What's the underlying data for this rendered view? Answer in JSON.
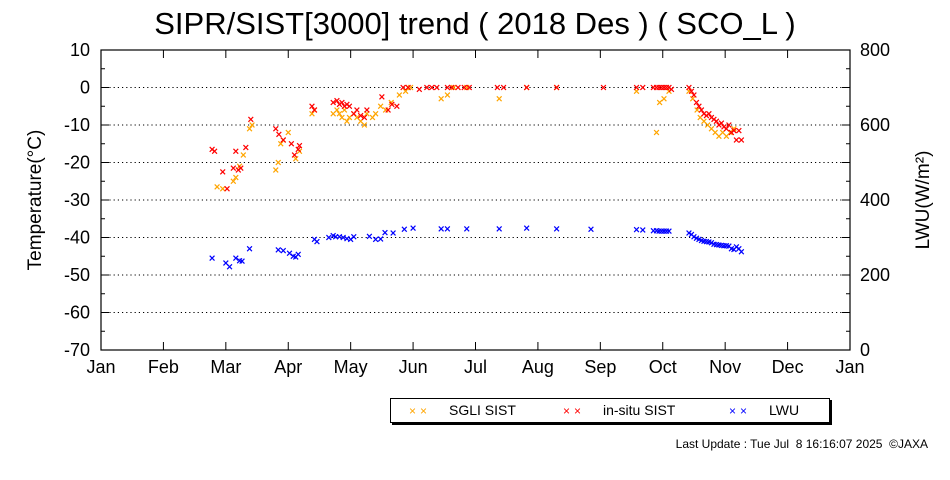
{
  "chart_data": {
    "type": "scatter",
    "title": "SIPR/SIST[3000] trend ( 2018 Des ) ( SCO_L )",
    "ylabel": "Temperature(°C)",
    "ylabel_right": "LWU(W/m²)",
    "ylim": [
      -70,
      10
    ],
    "ylim_right": [
      0,
      800
    ],
    "yticks": [
      10,
      0,
      -10,
      -20,
      -30,
      -40,
      -50,
      -60,
      -70
    ],
    "yticks_right": [
      800,
      600,
      400,
      200,
      0
    ],
    "xticks": [
      "Jan",
      "Feb",
      "Mar",
      "Apr",
      "May",
      "Jun",
      "Jul",
      "Aug",
      "Sep",
      "Oct",
      "Nov",
      "Dec",
      "Jan"
    ],
    "x_unit": "month (0 = Jan 1, 12 = Jan 1 next year)",
    "grid": "horizontal dotted",
    "legend_position": "bottom-right",
    "series": [
      {
        "name": "SGLI SIST",
        "color": "#ffa500",
        "axis": "left",
        "points": [
          [
            1.86,
            -26.5
          ],
          [
            1.95,
            -27
          ],
          [
            2.12,
            -25
          ],
          [
            2.16,
            -24
          ],
          [
            2.22,
            -21
          ],
          [
            2.28,
            -18
          ],
          [
            2.38,
            -11
          ],
          [
            2.42,
            -10
          ],
          [
            2.8,
            -22
          ],
          [
            2.84,
            -20
          ],
          [
            2.88,
            -15
          ],
          [
            2.92,
            -14
          ],
          [
            3.0,
            -12
          ],
          [
            3.12,
            -19
          ],
          [
            3.18,
            -17
          ],
          [
            3.38,
            -7
          ],
          [
            3.42,
            -6
          ],
          [
            3.72,
            -7
          ],
          [
            3.78,
            -6
          ],
          [
            3.82,
            -7
          ],
          [
            3.86,
            -8
          ],
          [
            3.9,
            -6
          ],
          [
            3.94,
            -9
          ],
          [
            3.98,
            -8
          ],
          [
            4.05,
            -7
          ],
          [
            4.1,
            -8
          ],
          [
            4.16,
            -9
          ],
          [
            4.22,
            -10
          ],
          [
            4.26,
            -7
          ],
          [
            4.35,
            -8
          ],
          [
            4.4,
            -7
          ],
          [
            4.48,
            -5
          ],
          [
            4.56,
            -6
          ],
          [
            4.65,
            -4
          ],
          [
            4.78,
            -2
          ],
          [
            4.88,
            -1
          ],
          [
            4.92,
            0
          ],
          [
            4.96,
            0
          ],
          [
            5.45,
            -3
          ],
          [
            5.55,
            -2
          ],
          [
            5.65,
            0
          ],
          [
            5.86,
            0
          ],
          [
            6.38,
            -3
          ],
          [
            6.82,
            0
          ],
          [
            7.3,
            0
          ],
          [
            8.58,
            -1
          ],
          [
            8.9,
            -12
          ],
          [
            8.95,
            -4
          ],
          [
            9.02,
            -3
          ],
          [
            9.1,
            -1
          ],
          [
            9.42,
            -1
          ],
          [
            9.48,
            -3
          ],
          [
            9.55,
            -6
          ],
          [
            9.6,
            -8
          ],
          [
            9.66,
            -9
          ],
          [
            9.72,
            -10
          ],
          [
            9.78,
            -11
          ],
          [
            9.84,
            -12
          ],
          [
            9.9,
            -13
          ],
          [
            9.96,
            -12
          ],
          [
            10.02,
            -13
          ],
          [
            10.08,
            -12
          ],
          [
            10.14,
            -11
          ]
        ]
      },
      {
        "name": "in-situ SIST",
        "color": "#ff0000",
        "axis": "left",
        "points": [
          [
            1.78,
            -16.5
          ],
          [
            1.82,
            -17
          ],
          [
            1.95,
            -22.5
          ],
          [
            2.02,
            -27
          ],
          [
            2.12,
            -21.5
          ],
          [
            2.16,
            -17
          ],
          [
            2.2,
            -22
          ],
          [
            2.24,
            -21.5
          ],
          [
            2.32,
            -16
          ],
          [
            2.4,
            -8.5
          ],
          [
            2.8,
            -11
          ],
          [
            2.85,
            -12.5
          ],
          [
            2.92,
            -14
          ],
          [
            3.05,
            -15
          ],
          [
            3.1,
            -18
          ],
          [
            3.16,
            -16.5
          ],
          [
            3.18,
            -15.5
          ],
          [
            3.38,
            -5
          ],
          [
            3.42,
            -6
          ],
          [
            3.72,
            -4
          ],
          [
            3.78,
            -3.5
          ],
          [
            3.82,
            -4.5
          ],
          [
            3.86,
            -4
          ],
          [
            3.9,
            -5
          ],
          [
            3.94,
            -4.5
          ],
          [
            3.98,
            -5
          ],
          [
            4.05,
            -7
          ],
          [
            4.1,
            -6
          ],
          [
            4.16,
            -7.5
          ],
          [
            4.22,
            -8
          ],
          [
            4.26,
            -6
          ],
          [
            4.5,
            -2.5
          ],
          [
            4.6,
            -6
          ],
          [
            4.66,
            -4.5
          ],
          [
            4.74,
            -5
          ],
          [
            4.84,
            0
          ],
          [
            4.92,
            0
          ],
          [
            5.1,
            -0.5
          ],
          [
            5.22,
            0
          ],
          [
            5.3,
            0
          ],
          [
            5.38,
            0
          ],
          [
            5.55,
            0
          ],
          [
            5.62,
            0
          ],
          [
            5.72,
            0
          ],
          [
            5.82,
            0
          ],
          [
            5.9,
            0
          ],
          [
            6.35,
            0
          ],
          [
            6.45,
            0
          ],
          [
            6.82,
            0
          ],
          [
            7.3,
            0
          ],
          [
            8.05,
            0
          ],
          [
            8.58,
            0
          ],
          [
            8.68,
            0
          ],
          [
            8.85,
            0
          ],
          [
            8.9,
            0
          ],
          [
            8.94,
            0
          ],
          [
            8.98,
            0
          ],
          [
            9.02,
            0
          ],
          [
            9.06,
            0
          ],
          [
            9.1,
            0
          ],
          [
            9.14,
            -0.5
          ],
          [
            9.42,
            0
          ],
          [
            9.46,
            -1
          ],
          [
            9.5,
            -2
          ],
          [
            9.54,
            -4
          ],
          [
            9.58,
            -5
          ],
          [
            9.62,
            -6
          ],
          [
            9.66,
            -7
          ],
          [
            9.7,
            -7.5
          ],
          [
            9.74,
            -7
          ],
          [
            9.78,
            -8
          ],
          [
            9.82,
            -8.5
          ],
          [
            9.86,
            -9
          ],
          [
            9.9,
            -10
          ],
          [
            9.94,
            -9.5
          ],
          [
            9.98,
            -10.5
          ],
          [
            10.02,
            -11
          ],
          [
            10.06,
            -10
          ],
          [
            10.1,
            -12
          ],
          [
            10.14,
            -11.5
          ],
          [
            10.18,
            -14
          ],
          [
            10.22,
            -11.5
          ],
          [
            10.26,
            -14
          ]
        ]
      },
      {
        "name": "LWU",
        "color": "#0000ff",
        "axis": "right",
        "points": [
          [
            1.78,
            245
          ],
          [
            2.0,
            232
          ],
          [
            2.06,
            222
          ],
          [
            2.16,
            245
          ],
          [
            2.22,
            238
          ],
          [
            2.26,
            237
          ],
          [
            2.38,
            270
          ],
          [
            2.84,
            267
          ],
          [
            2.92,
            265
          ],
          [
            3.02,
            258
          ],
          [
            3.08,
            250
          ],
          [
            3.12,
            248
          ],
          [
            3.16,
            255
          ],
          [
            3.42,
            295
          ],
          [
            3.46,
            289
          ],
          [
            3.65,
            300
          ],
          [
            3.72,
            305
          ],
          [
            3.76,
            302
          ],
          [
            3.82,
            302
          ],
          [
            3.88,
            300
          ],
          [
            3.94,
            297
          ],
          [
            4.0,
            295
          ],
          [
            4.05,
            302
          ],
          [
            4.3,
            303
          ],
          [
            4.4,
            295
          ],
          [
            4.48,
            296
          ],
          [
            4.55,
            313
          ],
          [
            4.68,
            312
          ],
          [
            4.86,
            322
          ],
          [
            5.0,
            325
          ],
          [
            5.45,
            323
          ],
          [
            5.55,
            323
          ],
          [
            5.86,
            323
          ],
          [
            6.38,
            323
          ],
          [
            6.82,
            325
          ],
          [
            7.3,
            323
          ],
          [
            7.85,
            322
          ],
          [
            8.58,
            321
          ],
          [
            8.68,
            320
          ],
          [
            8.85,
            318
          ],
          [
            8.9,
            318
          ],
          [
            8.94,
            317
          ],
          [
            8.98,
            317
          ],
          [
            9.02,
            317
          ],
          [
            9.06,
            317
          ],
          [
            9.1,
            317
          ],
          [
            9.42,
            312
          ],
          [
            9.46,
            308
          ],
          [
            9.5,
            302
          ],
          [
            9.54,
            298
          ],
          [
            9.58,
            295
          ],
          [
            9.62,
            292
          ],
          [
            9.66,
            290
          ],
          [
            9.7,
            289
          ],
          [
            9.74,
            288
          ],
          [
            9.78,
            286
          ],
          [
            9.82,
            282
          ],
          [
            9.86,
            281
          ],
          [
            9.9,
            280
          ],
          [
            9.94,
            279
          ],
          [
            9.98,
            278
          ],
          [
            10.02,
            278
          ],
          [
            10.06,
            277
          ],
          [
            10.1,
            270
          ],
          [
            10.14,
            268
          ],
          [
            10.18,
            275
          ],
          [
            10.22,
            270
          ],
          [
            10.26,
            262
          ]
        ]
      }
    ]
  },
  "footer": {
    "last_update": "Last Update : Tue Jul  8 16:16:07 2025  ©JAXA"
  }
}
